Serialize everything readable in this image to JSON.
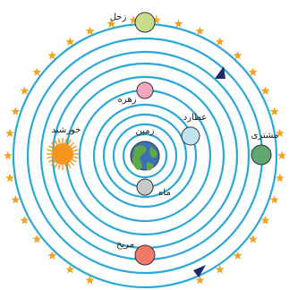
{
  "diagram": {
    "labels": {
      "saturn": "زحل",
      "jupiter": "مشتری",
      "mars": "مریخ",
      "sun": "خورشید",
      "venus": "زهره",
      "mercury": "عطارد",
      "earth": "زمین",
      "moon": "ماه"
    },
    "colors": {
      "orbit": "#2aa8d8",
      "star": "#f4a21c",
      "saturn": "#c8dc8a",
      "jupiter": "#5fa872",
      "mars": "#f07a6a",
      "sun": "#f7941d",
      "venus": "#f4a6c0",
      "mercury": "#bfe6ef",
      "moon": "#c8c8c8",
      "earth_ocean": "#3b6fb6",
      "earth_land": "#5fa84a"
    }
  }
}
